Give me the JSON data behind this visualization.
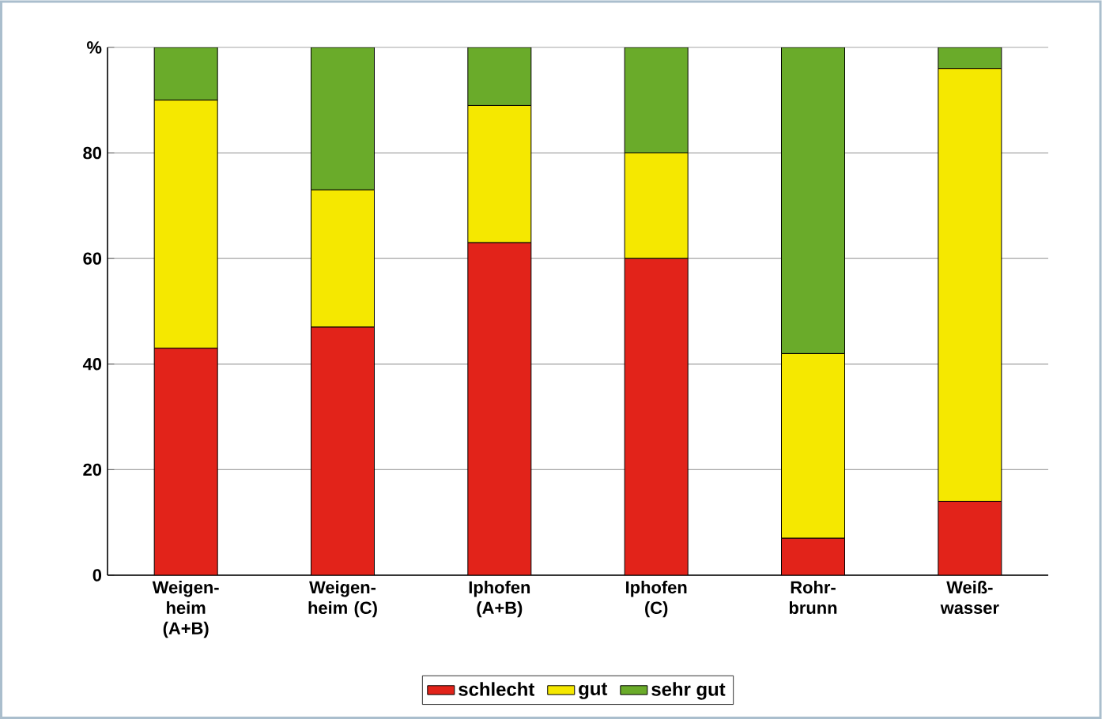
{
  "chart_data": {
    "type": "bar",
    "stacked": true,
    "categories": [
      "Weigen-heim (A+B)",
      "Weigen-heim (C)",
      "Iphofen (A+B)",
      "Iphofen (C)",
      "Rohr-brunn",
      "Weiß-wasser"
    ],
    "series": [
      {
        "name": "schlecht",
        "color": "#e2231a",
        "values": [
          43,
          47,
          63,
          60,
          7,
          14
        ]
      },
      {
        "name": "gut",
        "color": "#f5e800",
        "values": [
          47,
          26,
          26,
          20,
          35,
          82
        ]
      },
      {
        "name": "sehr gut",
        "color": "#6aab2a",
        "values": [
          10,
          27,
          11,
          20,
          58,
          4
        ]
      }
    ],
    "ylim": [
      0,
      100
    ],
    "yticks": [
      0,
      20,
      40,
      60,
      80,
      {
        "value": 100,
        "label": "%"
      }
    ],
    "grid": "y",
    "legend": "bottom"
  }
}
